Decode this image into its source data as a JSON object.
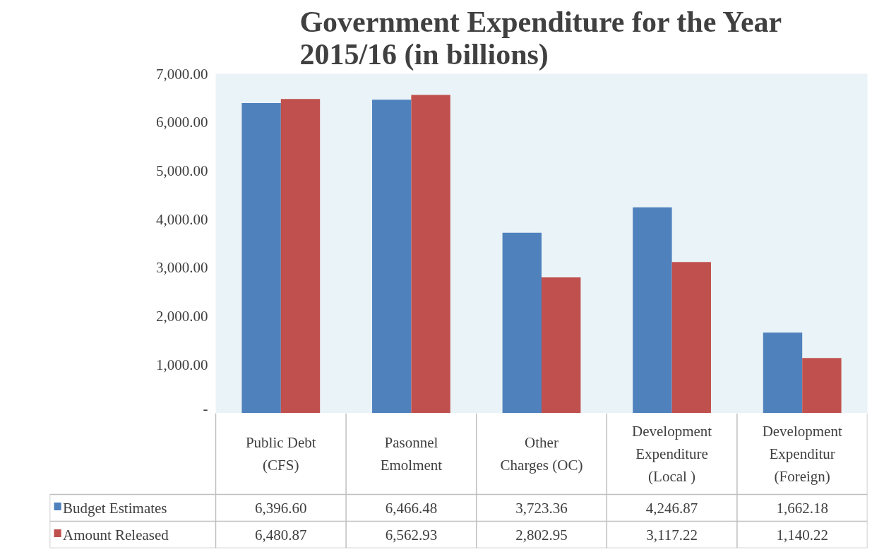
{
  "chart_data": {
    "type": "bar",
    "title": "Government Expenditure for the Year\n2015/16 (in  billions)",
    "categories": [
      "Public Debt\n(CFS)",
      "Pasonnel\nEmolment",
      "Other\nCharges (OC)",
      "Development\nExpenditure\n(Local )",
      "Development\nExpenditur\n(Foreign)"
    ],
    "series": [
      {
        "name": "Budget Estimates",
        "color": "#4f81bd",
        "values": [
          6396.6,
          6466.48,
          3723.36,
          4246.87,
          1662.18
        ],
        "value_labels": [
          "6,396.60",
          "6,466.48",
          "3,723.36",
          "4,246.87",
          "1,662.18"
        ]
      },
      {
        "name": "Amount Released",
        "color": "#c0504d",
        "values": [
          6480.87,
          6562.93,
          2802.95,
          3117.22,
          1140.22
        ],
        "value_labels": [
          "6,480.87",
          "6,562.93",
          "2,802.95",
          "3,117.22",
          "1,140.22"
        ]
      }
    ],
    "ylim": [
      0,
      7000
    ],
    "yticks": [
      {
        "value": 0,
        "label": "-"
      },
      {
        "value": 1000,
        "label": "1,000.00"
      },
      {
        "value": 2000,
        "label": "2,000.00"
      },
      {
        "value": 3000,
        "label": "3,000.00"
      },
      {
        "value": 4000,
        "label": "4,000.00"
      },
      {
        "value": 5000,
        "label": "5,000.00"
      },
      {
        "value": 6000,
        "label": "6,000.00"
      },
      {
        "value": 7000,
        "label": "7,000.00"
      }
    ],
    "grid": false,
    "legend": "bottom"
  }
}
